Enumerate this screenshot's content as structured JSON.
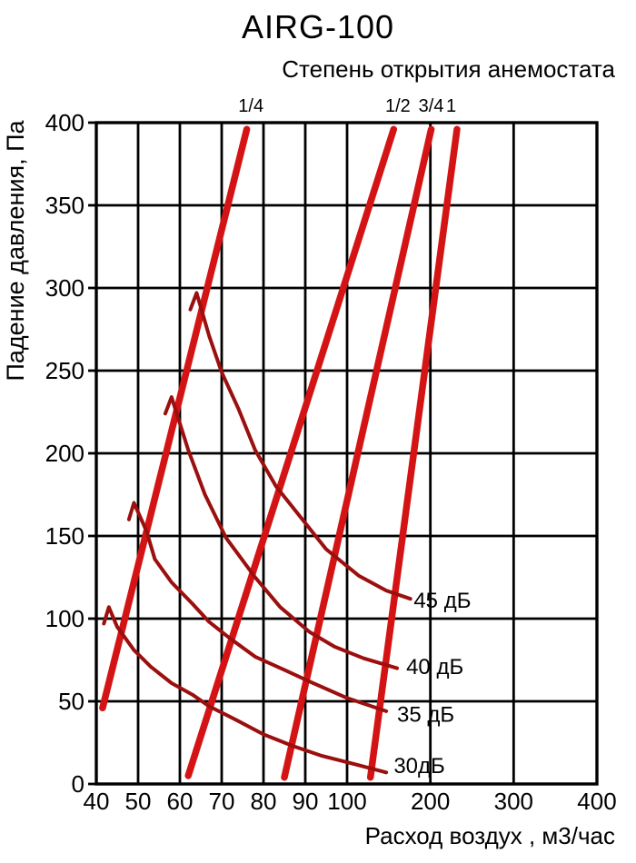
{
  "title": "AIRG-100",
  "subtitle": "Степень открытия анемостата",
  "x_axis": {
    "label": "Расход воздух , м3/час"
  },
  "y_axis": {
    "label": "Падение давления, Па"
  },
  "chart_data": {
    "type": "line",
    "title": "AIRG-100",
    "subtitle": "Степень открытия анемостата",
    "xlabel": "Расход воздух , м3/час",
    "ylabel": "Падение давления, Па",
    "xlim": [
      40,
      400
    ],
    "ylim": [
      0,
      400
    ],
    "x_scale": "segmented linear: 40-100 (minor step 10) and 100-400 (step 100), scale break at 100",
    "y_scale": "linear",
    "grid": true,
    "legend_position": "none",
    "x_ticks": [
      40,
      50,
      60,
      70,
      80,
      90,
      100,
      200,
      300,
      400
    ],
    "y_ticks": [
      0,
      50,
      100,
      150,
      200,
      250,
      300,
      350,
      400
    ],
    "colors": {
      "opening_lines": "#d41414",
      "noise_curves": "#9b0f0f",
      "grid": "#000000"
    },
    "series": [
      {
        "id": "open-1-4",
        "name": "1/4",
        "group": "opening-degree",
        "style": "thick-straight",
        "points": [
          [
            41.5,
            46
          ],
          [
            76,
            396
          ]
        ],
        "label_x": 77
      },
      {
        "id": "open-1-2",
        "name": "1/2",
        "group": "opening-degree",
        "style": "thick-straight",
        "points": [
          [
            62,
            5
          ],
          [
            156,
            396
          ]
        ],
        "label_x": 161
      },
      {
        "id": "open-3-4",
        "name": "3/4",
        "group": "opening-degree",
        "style": "thick-straight",
        "points": [
          [
            85,
            4
          ],
          [
            201,
            396
          ]
        ],
        "label_x": 201
      },
      {
        "id": "open-1",
        "name": "1",
        "group": "opening-degree",
        "style": "thick-straight",
        "points": [
          [
            128,
            4
          ],
          [
            232,
            396
          ]
        ],
        "label_x": 225
      },
      {
        "id": "noise-45",
        "name": "45 дБ",
        "group": "noise-level",
        "style": "thin-curve",
        "points": [
          [
            62.5,
            287
          ],
          [
            64,
            297
          ],
          [
            67,
            271
          ],
          [
            70,
            249
          ],
          [
            74,
            227
          ],
          [
            78,
            202
          ],
          [
            83,
            180
          ],
          [
            89,
            161
          ],
          [
            95,
            142
          ],
          [
            114,
            126
          ],
          [
            147,
            117
          ],
          [
            176,
            112
          ]
        ],
        "label_at": [
          180,
          111
        ]
      },
      {
        "id": "noise-40",
        "name": "40 дБ",
        "group": "noise-level",
        "style": "thin-curve",
        "points": [
          [
            56.5,
            224
          ],
          [
            58,
            234
          ],
          [
            62,
            202
          ],
          [
            66,
            175
          ],
          [
            71,
            149
          ],
          [
            78,
            125
          ],
          [
            84,
            107
          ],
          [
            91,
            92
          ],
          [
            97,
            83
          ],
          [
            120,
            76
          ],
          [
            160,
            70
          ]
        ],
        "label_at": [
          171,
          71
        ]
      },
      {
        "id": "noise-35",
        "name": "35 дБ",
        "group": "noise-level",
        "style": "thin-curve",
        "points": [
          [
            47.8,
            160
          ],
          [
            49,
            170
          ],
          [
            52,
            153
          ],
          [
            54,
            136
          ],
          [
            58,
            122
          ],
          [
            63,
            109
          ],
          [
            67,
            98
          ],
          [
            72,
            88
          ],
          [
            78,
            77
          ],
          [
            85,
            69
          ],
          [
            91,
            62
          ],
          [
            100,
            52
          ],
          [
            147,
            44
          ]
        ],
        "label_at": [
          160,
          42
        ]
      },
      {
        "id": "noise-30",
        "name": "30дБ",
        "group": "noise-level",
        "style": "thin-curve",
        "points": [
          [
            41.8,
            97
          ],
          [
            43,
            107
          ],
          [
            45,
            95
          ],
          [
            49,
            81
          ],
          [
            53,
            71
          ],
          [
            58,
            61
          ],
          [
            63,
            54
          ],
          [
            67,
            47
          ],
          [
            74,
            38
          ],
          [
            80,
            30
          ],
          [
            87,
            23
          ],
          [
            94,
            17
          ],
          [
            109,
            12
          ],
          [
            147,
            7
          ]
        ],
        "label_at": [
          156,
          11
        ]
      }
    ]
  }
}
